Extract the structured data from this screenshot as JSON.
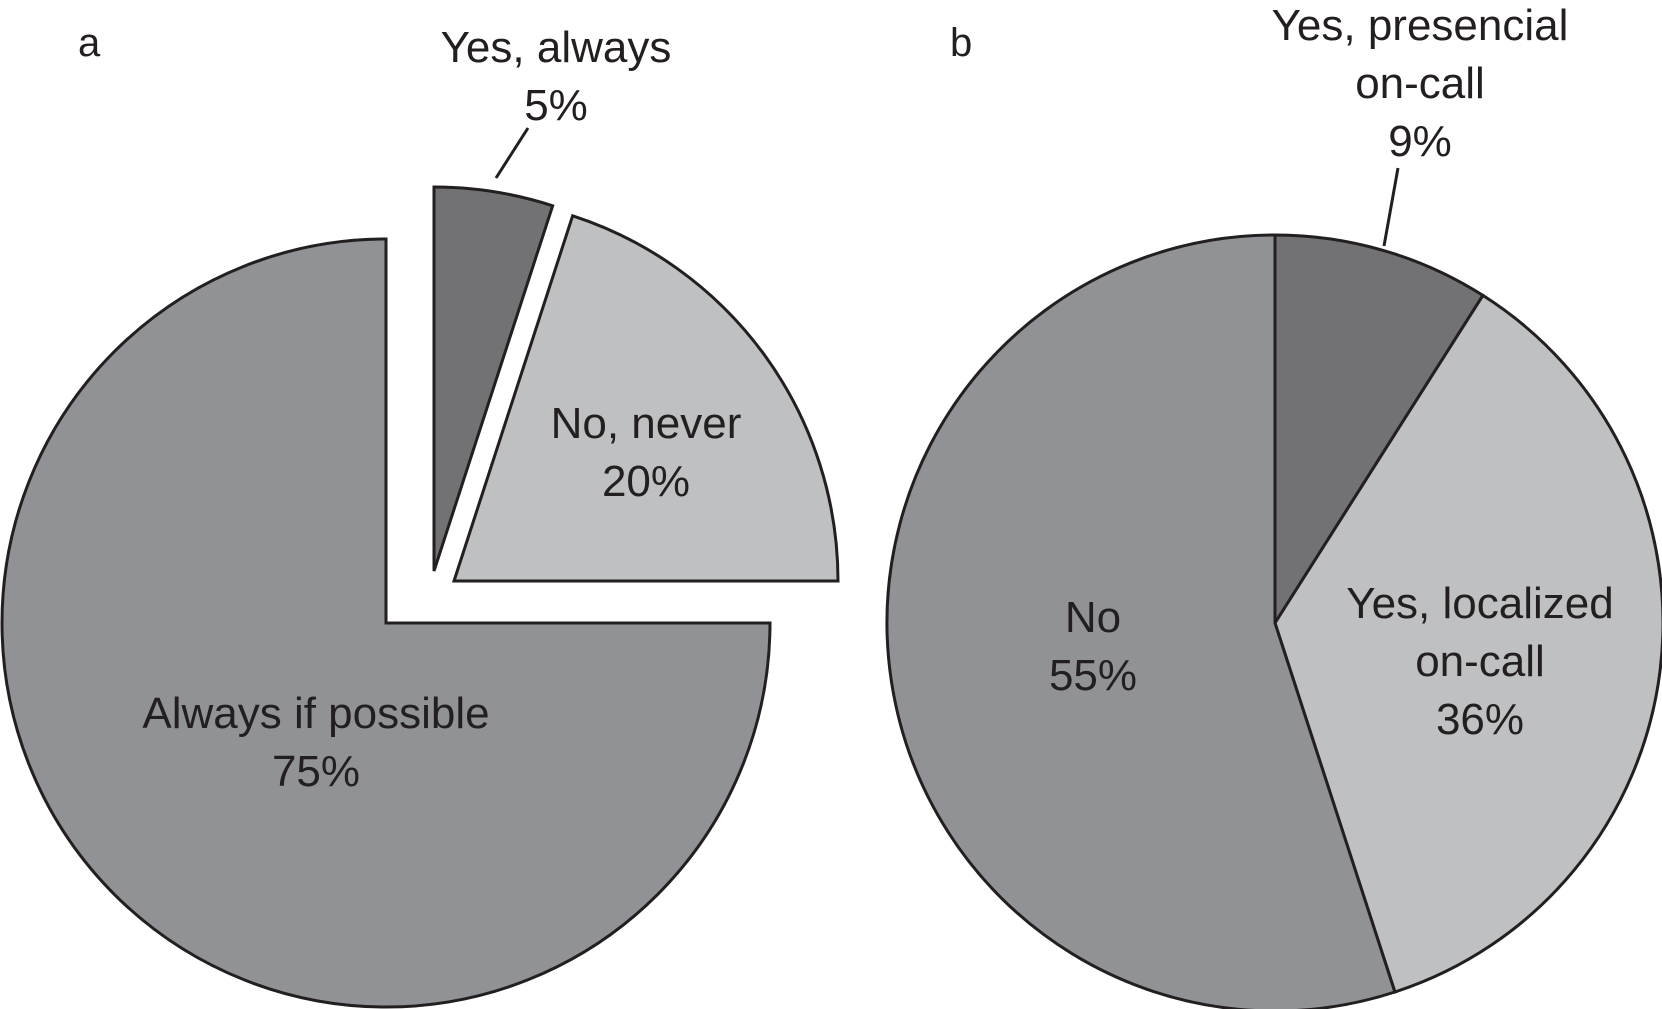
{
  "chart_data": [
    {
      "type": "pie",
      "panel_label": "a",
      "slices": [
        {
          "label": [
            "Yes, always",
            "5%"
          ],
          "value": 5,
          "color": "#727274",
          "exploded": true,
          "leader": true
        },
        {
          "label": [
            "No, never",
            "20%"
          ],
          "value": 20,
          "color": "#bfc0c2",
          "exploded": true,
          "leader": false
        },
        {
          "label": [
            "Always if possible",
            "75%"
          ],
          "value": 75,
          "color": "#919295",
          "exploded": false,
          "leader": false
        }
      ]
    },
    {
      "type": "pie",
      "panel_label": "b",
      "slices": [
        {
          "label": [
            "Yes, presencial",
            "on-call",
            "9%"
          ],
          "value": 9,
          "color": "#727274",
          "exploded": false,
          "leader": true
        },
        {
          "label": [
            "Yes, localized",
            "on-call",
            "36%"
          ],
          "value": 36,
          "color": "#bfc0c2",
          "exploded": false,
          "leader": false
        },
        {
          "label": [
            "No",
            "55%"
          ],
          "value": 55,
          "color": "#919295",
          "exploded": false,
          "leader": false
        }
      ]
    }
  ],
  "colors": {
    "stroke": "#231f20",
    "text": "#231f20"
  }
}
